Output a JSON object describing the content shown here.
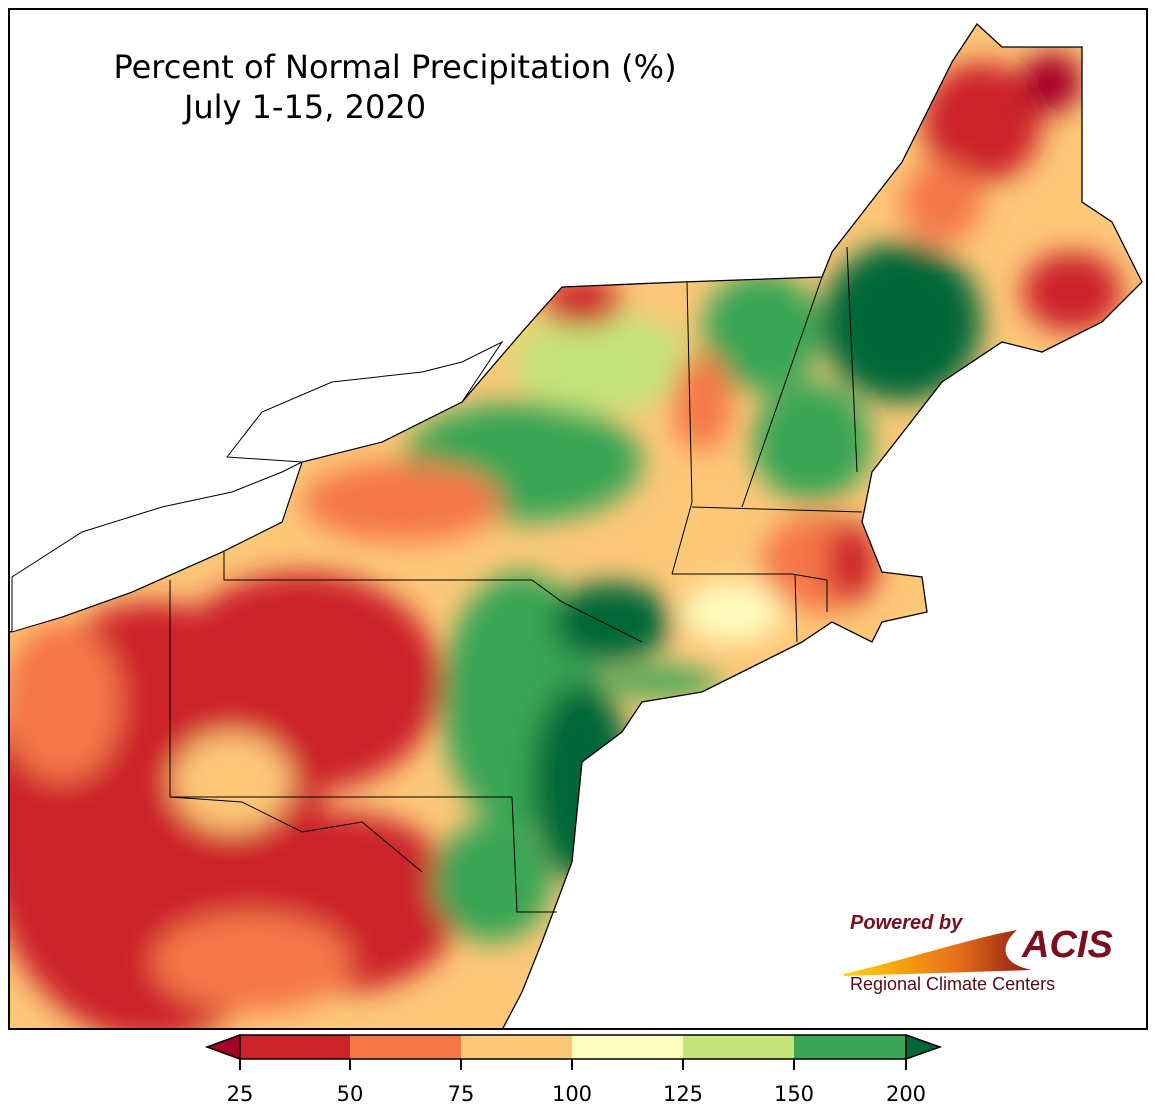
{
  "title": {
    "line1": "Percent of Normal Precipitation (%)",
    "line2": "July 1-15, 2020"
  },
  "colorbar": {
    "ticks": [
      "25",
      "50",
      "75",
      "100",
      "125",
      "150",
      "200"
    ],
    "colors": {
      "under": "#a50026",
      "25-50": "#cc2229",
      "50-75": "#f57748",
      "75-100": "#fdc878",
      "100-125": "#fffdc0",
      "125-150": "#c5e57a",
      "150-200": "#38a654",
      "over": "#006837"
    }
  },
  "logo": {
    "powered_by": "Powered by",
    "name": "ACIS",
    "subtitle": "Regional Climate Centers"
  }
}
